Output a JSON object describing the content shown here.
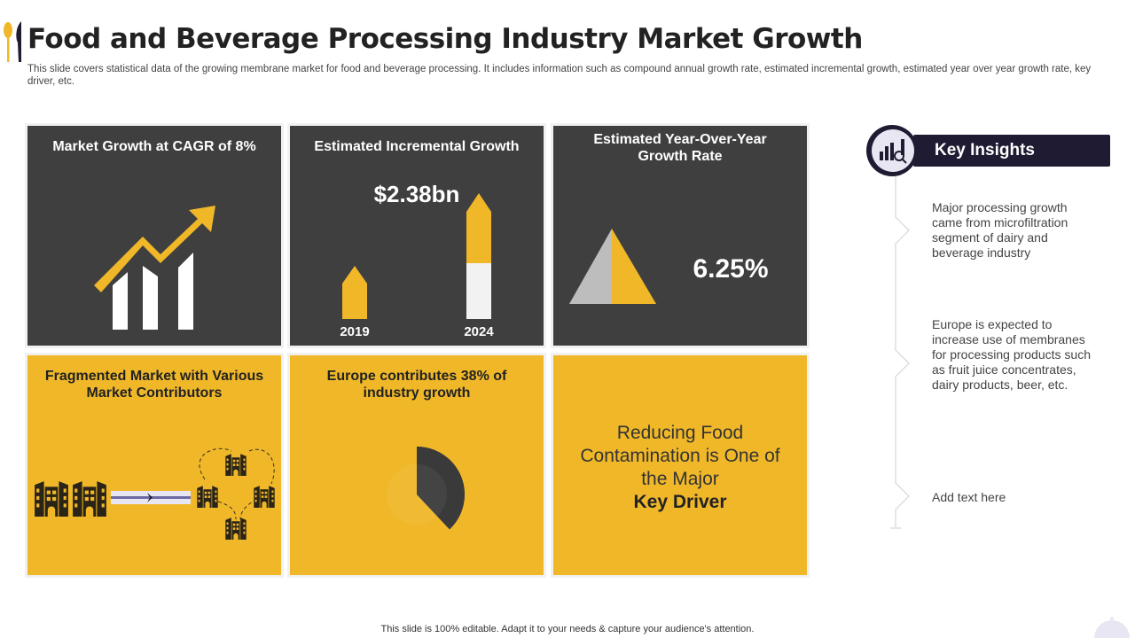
{
  "header": {
    "title": "Food and Beverage Processing Industry Market Growth",
    "subtitle": "This slide covers statistical data of the growing membrane market for food and beverage processing. It includes information such as compound annual growth rate, estimated incremental growth, estimated year over year growth rate, key driver,  etc."
  },
  "tiles": {
    "cagr": {
      "title": "Market Growth at CAGR of 8%"
    },
    "incremental": {
      "title": "Estimated Incremental Growth",
      "value": "$2.38bn",
      "year_a": "2019",
      "year_b": "2024"
    },
    "yoy": {
      "title": "Estimated Year-Over-Year Growth Rate",
      "value": "6.25%"
    },
    "fragmented": {
      "title": "Fragmented Market with Various Market Contributors"
    },
    "europe": {
      "title": "Europe contributes  38% of industry growth",
      "share_percent": 38
    },
    "driver": {
      "text": "Reducing Food Contamination is One of the Major",
      "bold": "Key Driver"
    }
  },
  "insights": {
    "title": "Key Insights",
    "items": [
      "Major processing growth came from microfiltration segment of dairy and beverage industry",
      "Europe is expected to increase use of membranes for processing products such as fruit juice concentrates, dairy products, beer, etc.",
      "Add text here"
    ]
  },
  "footer": "This slide is 100% editable.  Adapt it to your needs & capture your audience's attention.",
  "colors": {
    "dark": "#3f3f3f",
    "yellow": "#f0b829",
    "navy": "#1e1b32"
  }
}
